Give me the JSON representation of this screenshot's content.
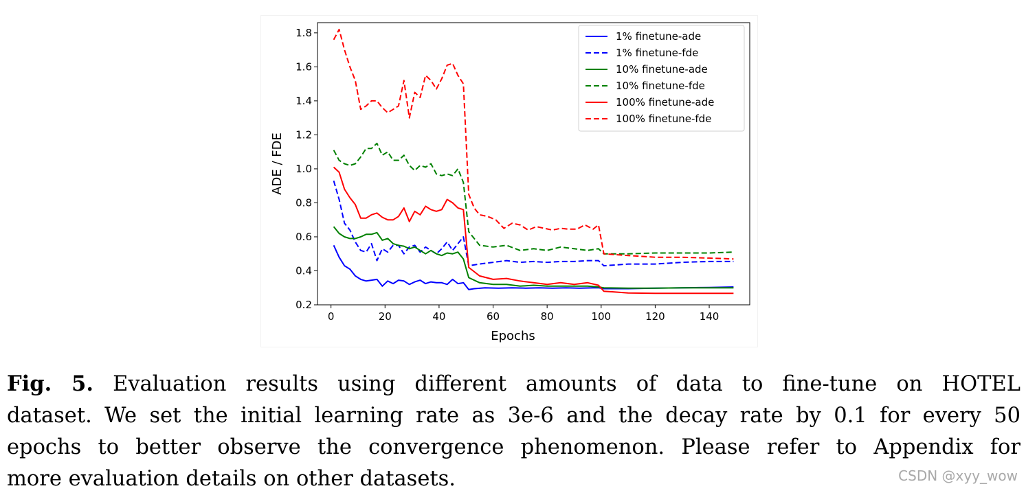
{
  "chart_data": {
    "type": "line",
    "title": "",
    "xlabel": "Epochs",
    "ylabel": "ADE / FDE",
    "xlim": [
      -5,
      155
    ],
    "ylim": [
      0.2,
      1.86
    ],
    "xticks": [
      0,
      20,
      40,
      60,
      80,
      100,
      120,
      140
    ],
    "yticks": [
      0.2,
      0.4,
      0.6,
      0.8,
      1.0,
      1.2,
      1.4,
      1.6,
      1.8
    ],
    "xtick_labels": [
      "0",
      "20",
      "40",
      "60",
      "80",
      "100",
      "120",
      "140"
    ],
    "ytick_labels": [
      "0.2",
      "0.4",
      "0.6",
      "0.8",
      "1.0",
      "1.2",
      "1.4",
      "1.6",
      "1.8"
    ],
    "grid": false,
    "legend_position": "top-right",
    "series": [
      {
        "name": "1% finetune-ade",
        "color": "#0000ff",
        "dash": "solid",
        "x": [
          1,
          3,
          5,
          7,
          9,
          11,
          13,
          15,
          17,
          19,
          21,
          23,
          25,
          27,
          29,
          31,
          33,
          35,
          37,
          39,
          41,
          43,
          45,
          47,
          49,
          51,
          53,
          57,
          62,
          67,
          72,
          77,
          82,
          87,
          92,
          97,
          99,
          101,
          110,
          120,
          130,
          140,
          149
        ],
        "y": [
          0.55,
          0.48,
          0.43,
          0.41,
          0.37,
          0.35,
          0.34,
          0.345,
          0.35,
          0.31,
          0.34,
          0.325,
          0.345,
          0.34,
          0.32,
          0.335,
          0.345,
          0.325,
          0.335,
          0.33,
          0.33,
          0.32,
          0.35,
          0.325,
          0.33,
          0.29,
          0.295,
          0.3,
          0.298,
          0.3,
          0.298,
          0.3,
          0.298,
          0.3,
          0.298,
          0.3,
          0.3,
          0.295,
          0.295,
          0.298,
          0.3,
          0.302,
          0.305
        ]
      },
      {
        "name": "1% finetune-fde",
        "color": "#0000ff",
        "dash": "dashed",
        "x": [
          1,
          3,
          5,
          7,
          9,
          11,
          13,
          15,
          17,
          19,
          21,
          23,
          25,
          27,
          29,
          31,
          33,
          35,
          37,
          39,
          41,
          43,
          45,
          47,
          49,
          51,
          55,
          60,
          65,
          70,
          75,
          80,
          85,
          90,
          95,
          99,
          101,
          110,
          120,
          130,
          140,
          149
        ],
        "y": [
          0.93,
          0.82,
          0.68,
          0.64,
          0.57,
          0.52,
          0.51,
          0.56,
          0.46,
          0.53,
          0.51,
          0.55,
          0.55,
          0.5,
          0.54,
          0.55,
          0.51,
          0.54,
          0.52,
          0.5,
          0.53,
          0.57,
          0.52,
          0.56,
          0.6,
          0.43,
          0.44,
          0.45,
          0.46,
          0.45,
          0.455,
          0.45,
          0.455,
          0.455,
          0.46,
          0.46,
          0.43,
          0.44,
          0.44,
          0.45,
          0.455,
          0.455
        ]
      },
      {
        "name": "10% finetune-ade",
        "color": "#008000",
        "dash": "solid",
        "x": [
          1,
          3,
          5,
          7,
          9,
          11,
          13,
          15,
          17,
          19,
          21,
          23,
          25,
          27,
          29,
          31,
          33,
          35,
          37,
          39,
          41,
          43,
          45,
          47,
          49,
          51,
          55,
          60,
          65,
          70,
          75,
          80,
          85,
          90,
          95,
          99,
          101,
          110,
          120,
          130,
          140,
          149
        ],
        "y": [
          0.66,
          0.62,
          0.6,
          0.59,
          0.59,
          0.6,
          0.615,
          0.615,
          0.625,
          0.58,
          0.59,
          0.56,
          0.55,
          0.545,
          0.53,
          0.54,
          0.52,
          0.5,
          0.52,
          0.5,
          0.49,
          0.505,
          0.5,
          0.51,
          0.47,
          0.36,
          0.33,
          0.32,
          0.32,
          0.31,
          0.315,
          0.31,
          0.31,
          0.31,
          0.31,
          0.305,
          0.3,
          0.298,
          0.298,
          0.3,
          0.3,
          0.3
        ]
      },
      {
        "name": "10% finetune-fde",
        "color": "#008000",
        "dash": "dashed",
        "x": [
          1,
          3,
          5,
          7,
          9,
          11,
          13,
          15,
          17,
          19,
          21,
          23,
          25,
          27,
          29,
          31,
          33,
          35,
          37,
          39,
          41,
          43,
          45,
          47,
          49,
          51,
          55,
          60,
          65,
          70,
          75,
          80,
          85,
          90,
          95,
          99,
          101,
          110,
          120,
          130,
          140,
          149
        ],
        "y": [
          1.11,
          1.05,
          1.03,
          1.02,
          1.03,
          1.07,
          1.12,
          1.12,
          1.15,
          1.08,
          1.1,
          1.05,
          1.05,
          1.08,
          1.02,
          0.99,
          1.02,
          1.01,
          1.03,
          0.97,
          0.96,
          0.97,
          0.96,
          1.0,
          0.92,
          0.63,
          0.55,
          0.54,
          0.55,
          0.52,
          0.53,
          0.52,
          0.54,
          0.53,
          0.52,
          0.53,
          0.5,
          0.5,
          0.505,
          0.505,
          0.505,
          0.51
        ]
      },
      {
        "name": "100% finetune-ade",
        "color": "#ff0000",
        "dash": "solid",
        "x": [
          1,
          3,
          5,
          7,
          9,
          11,
          13,
          15,
          17,
          19,
          21,
          23,
          25,
          27,
          29,
          31,
          33,
          35,
          37,
          39,
          41,
          43,
          45,
          47,
          49,
          51,
          55,
          60,
          65,
          70,
          75,
          80,
          85,
          90,
          95,
          99,
          101,
          110,
          120,
          130,
          140,
          149
        ],
        "y": [
          1.01,
          0.98,
          0.88,
          0.83,
          0.79,
          0.71,
          0.71,
          0.73,
          0.74,
          0.715,
          0.7,
          0.7,
          0.72,
          0.77,
          0.69,
          0.75,
          0.73,
          0.78,
          0.76,
          0.75,
          0.76,
          0.82,
          0.8,
          0.77,
          0.76,
          0.42,
          0.37,
          0.35,
          0.355,
          0.34,
          0.33,
          0.32,
          0.33,
          0.32,
          0.33,
          0.315,
          0.28,
          0.27,
          0.268,
          0.268,
          0.268,
          0.268
        ]
      },
      {
        "name": "100% finetune-fde",
        "color": "#ff0000",
        "dash": "dashed",
        "x": [
          1,
          3,
          5,
          7,
          9,
          11,
          13,
          15,
          17,
          19,
          21,
          23,
          25,
          27,
          29,
          31,
          33,
          35,
          37,
          39,
          41,
          43,
          45,
          47,
          49,
          51,
          53,
          55,
          58,
          61,
          64,
          67,
          70,
          73,
          76,
          79,
          82,
          85,
          88,
          91,
          94,
          97,
          99,
          101,
          110,
          120,
          130,
          140,
          149
        ],
        "y": [
          1.76,
          1.82,
          1.7,
          1.6,
          1.52,
          1.35,
          1.37,
          1.4,
          1.4,
          1.36,
          1.33,
          1.35,
          1.37,
          1.52,
          1.3,
          1.45,
          1.42,
          1.55,
          1.52,
          1.47,
          1.53,
          1.61,
          1.62,
          1.55,
          1.5,
          0.85,
          0.77,
          0.73,
          0.72,
          0.7,
          0.65,
          0.68,
          0.67,
          0.64,
          0.66,
          0.65,
          0.64,
          0.65,
          0.645,
          0.645,
          0.67,
          0.645,
          0.67,
          0.5,
          0.49,
          0.48,
          0.48,
          0.475,
          0.47
        ]
      }
    ]
  },
  "caption": {
    "label": "Fig. 5.",
    "lines": [
      "Evaluation results using different amounts of data to fine-tune on HOTEL",
      "dataset. We set the initial learning rate as 3e-6 and the decay rate by 0.1 for every 50",
      "epochs to better observe the convergence phenomenon. Please refer to Appendix for",
      "more evaluation details on other datasets."
    ]
  },
  "watermark": "CSDN @xyy_wow"
}
